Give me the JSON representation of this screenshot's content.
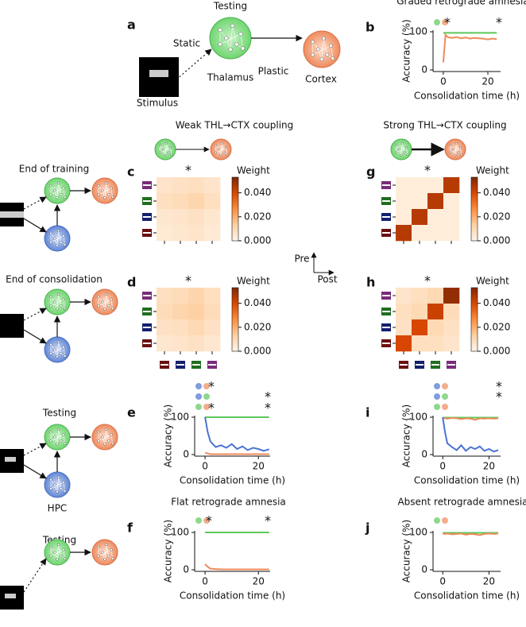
{
  "diagram": {
    "title": "Testing",
    "static": "Static",
    "plastic": "Plastic",
    "thalamus": "Thalamus",
    "cortex": "Cortex",
    "stimulus": "Stimulus",
    "label": "a"
  },
  "rows": {
    "end_training": "End of training",
    "end_consolidation": "End of consolidation",
    "testing_hpc": "Testing",
    "hpc": "HPC",
    "testing_no_hpc": "Testing"
  },
  "coupling_titles": [
    "Weak THL→CTX coupling",
    "Strong THL→CTX coupling"
  ],
  "pre_post": [
    "Pre",
    "Post"
  ],
  "chart_data": [
    {
      "type": "line",
      "label": "b",
      "title": "Graded retrograde amnesia",
      "xlabel": "Consolidation time (h)",
      "ylabel": "Accuracy (%)",
      "x": [
        0,
        1,
        2,
        4,
        6,
        8,
        10,
        12,
        14,
        16,
        18,
        20,
        22,
        24
      ],
      "xlim": [
        -4.6,
        25.7
      ],
      "ylim": [
        0,
        100
      ],
      "xticks": [
        0,
        20
      ],
      "yticks": [
        0,
        100
      ],
      "annotations": [
        "*",
        "*"
      ],
      "series": [
        {
          "color": "#5cc85c",
          "values": [
            97,
            97,
            97,
            97,
            97,
            97,
            97,
            97,
            97,
            97,
            97,
            97,
            97,
            97
          ]
        },
        {
          "color": "#ef8a5a",
          "values": [
            20,
            92,
            86,
            84,
            86,
            83,
            85,
            82,
            84,
            83,
            82,
            80,
            82,
            81
          ]
        }
      ]
    },
    {
      "type": "heatmap",
      "label": "c",
      "annotation": "*",
      "colorbar_label": "Weight",
      "zlim": [
        0,
        0.053
      ],
      "zticks": [
        {
          "value": 0,
          "label": "0.000"
        },
        {
          "value": 0.02,
          "label": "0.020"
        },
        {
          "value": 0.04,
          "label": "0.040"
        }
      ],
      "z": [
        [
          0.006,
          0.007,
          0.008,
          0.006
        ],
        [
          0.008,
          0.009,
          0.011,
          0.008
        ],
        [
          0.005,
          0.006,
          0.007,
          0.005
        ],
        [
          0.004,
          0.005,
          0.006,
          0.004
        ]
      ]
    },
    {
      "type": "heatmap",
      "label": "d",
      "annotation": "*",
      "colorbar_label": "Weight",
      "zlim": [
        0,
        0.053
      ],
      "zticks": [
        {
          "value": 0,
          "label": "0.000"
        },
        {
          "value": 0.02,
          "label": "0.020"
        },
        {
          "value": 0.04,
          "label": "0.040"
        }
      ],
      "z": [
        [
          0.008,
          0.009,
          0.011,
          0.008
        ],
        [
          0.009,
          0.011,
          0.013,
          0.009
        ],
        [
          0.007,
          0.008,
          0.01,
          0.007
        ],
        [
          0.005,
          0.006,
          0.007,
          0.005
        ]
      ]
    },
    {
      "type": "line",
      "label": "e",
      "xlabel": "Consolidation time (h)",
      "ylabel": "Accuracy (%)",
      "x": [
        0,
        1,
        2,
        4,
        6,
        8,
        10,
        12,
        14,
        16,
        18,
        20,
        22,
        24
      ],
      "xlim": [
        -3.9,
        24.4
      ],
      "ylim": [
        0,
        100
      ],
      "xticks": [
        0,
        20
      ],
      "yticks": [
        0,
        100
      ],
      "annotations": [
        "*",
        "*",
        "*",
        "*"
      ],
      "series": [
        {
          "color": "#5cc85c",
          "values": [
            100,
            100,
            100,
            100,
            100,
            100,
            100,
            100,
            100,
            100,
            100,
            100,
            100,
            100
          ]
        },
        {
          "color": "#ef8a5a",
          "values": [
            5,
            3,
            1,
            1,
            1,
            1,
            1,
            1,
            1,
            1,
            1,
            1,
            1,
            1
          ]
        },
        {
          "color": "#4a74d0",
          "values": [
            100,
            60,
            35,
            20,
            25,
            18,
            28,
            15,
            22,
            12,
            18,
            15,
            10,
            14
          ]
        }
      ]
    },
    {
      "type": "line",
      "label": "f",
      "title": "Flat retrograde amnesia",
      "xlabel": "Consolidation time (h)",
      "ylabel": "Accuracy (%)",
      "x": [
        0,
        1,
        2,
        4,
        6,
        8,
        10,
        12,
        14,
        16,
        18,
        20,
        22,
        24
      ],
      "xlim": [
        -3.9,
        24.4
      ],
      "ylim": [
        0,
        100
      ],
      "xticks": [
        0,
        20
      ],
      "yticks": [
        0,
        100
      ],
      "annotations": [
        "*",
        "*"
      ],
      "series": [
        {
          "color": "#5cc85c",
          "values": [
            100,
            100,
            100,
            100,
            100,
            100,
            100,
            100,
            100,
            100,
            100,
            100,
            100,
            100
          ]
        },
        {
          "color": "#ef8a5a",
          "values": [
            15,
            8,
            3,
            2,
            1,
            1,
            1,
            1,
            1,
            1,
            1,
            1,
            1,
            1
          ]
        }
      ]
    },
    {
      "type": "heatmap",
      "label": "g",
      "annotation": "*",
      "colorbar_label": "Weight",
      "zlim": [
        0,
        0.053
      ],
      "zticks": [
        {
          "value": 0,
          "label": "0.000"
        },
        {
          "value": 0.02,
          "label": "0.020"
        },
        {
          "value": 0.04,
          "label": "0.040"
        }
      ],
      "z": [
        [
          0.003,
          0.003,
          0.003,
          0.045
        ],
        [
          0.003,
          0.003,
          0.045,
          0.003
        ],
        [
          0.003,
          0.045,
          0.003,
          0.003
        ],
        [
          0.045,
          0.003,
          0.003,
          0.003
        ]
      ]
    },
    {
      "type": "heatmap",
      "label": "h",
      "annotation": "*",
      "colorbar_label": "Weight",
      "zlim": [
        0,
        0.053
      ],
      "zticks": [
        {
          "value": 0,
          "label": "0.000"
        },
        {
          "value": 0.02,
          "label": "0.020"
        },
        {
          "value": 0.04,
          "label": "0.040"
        }
      ],
      "z": [
        [
          0.006,
          0.008,
          0.01,
          0.05
        ],
        [
          0.008,
          0.01,
          0.042,
          0.009
        ],
        [
          0.007,
          0.04,
          0.01,
          0.007
        ],
        [
          0.04,
          0.008,
          0.008,
          0.006
        ]
      ]
    },
    {
      "type": "line",
      "label": "i",
      "xlabel": "Consolidation time (h)",
      "ylabel": "Accuracy (%)",
      "x": [
        0,
        1,
        2,
        4,
        6,
        8,
        10,
        12,
        14,
        16,
        18,
        20,
        22,
        24
      ],
      "xlim": [
        -4.2,
        25
      ],
      "ylim": [
        0,
        100
      ],
      "xticks": [
        0,
        20
      ],
      "yticks": [
        0,
        100
      ],
      "annotations": [
        "*",
        "*"
      ],
      "series": [
        {
          "color": "#5cc85c",
          "values": [
            99,
            99,
            99,
            99,
            99,
            99,
            99,
            99,
            99,
            99,
            99,
            99,
            99,
            99
          ]
        },
        {
          "color": "#ef8a5a",
          "values": [
            98,
            97,
            96,
            98,
            97,
            95,
            97,
            96,
            93,
            97,
            96,
            97,
            96,
            97
          ]
        },
        {
          "color": "#4a74d0",
          "values": [
            100,
            60,
            30,
            20,
            12,
            25,
            10,
            20,
            15,
            22,
            10,
            15,
            8,
            12
          ]
        }
      ]
    },
    {
      "type": "line",
      "label": "j",
      "title": "Absent retrograde amnesia",
      "xlabel": "Consolidation time (h)",
      "ylabel": "Accuracy (%)",
      "x": [
        0,
        1,
        2,
        4,
        6,
        8,
        10,
        12,
        14,
        16,
        18,
        20,
        22,
        24
      ],
      "xlim": [
        -4.2,
        25
      ],
      "ylim": [
        0,
        100
      ],
      "xticks": [
        0,
        20
      ],
      "yticks": [
        0,
        100
      ],
      "annotations": [],
      "series": [
        {
          "color": "#5cc85c",
          "values": [
            99,
            99,
            99,
            99,
            99,
            99,
            99,
            99,
            99,
            99,
            99,
            99,
            99,
            99
          ]
        },
        {
          "color": "#ef8a5a",
          "values": [
            97,
            96,
            97,
            95,
            96,
            97,
            94,
            96,
            95,
            93,
            96,
            97,
            96,
            97
          ]
        }
      ]
    }
  ]
}
